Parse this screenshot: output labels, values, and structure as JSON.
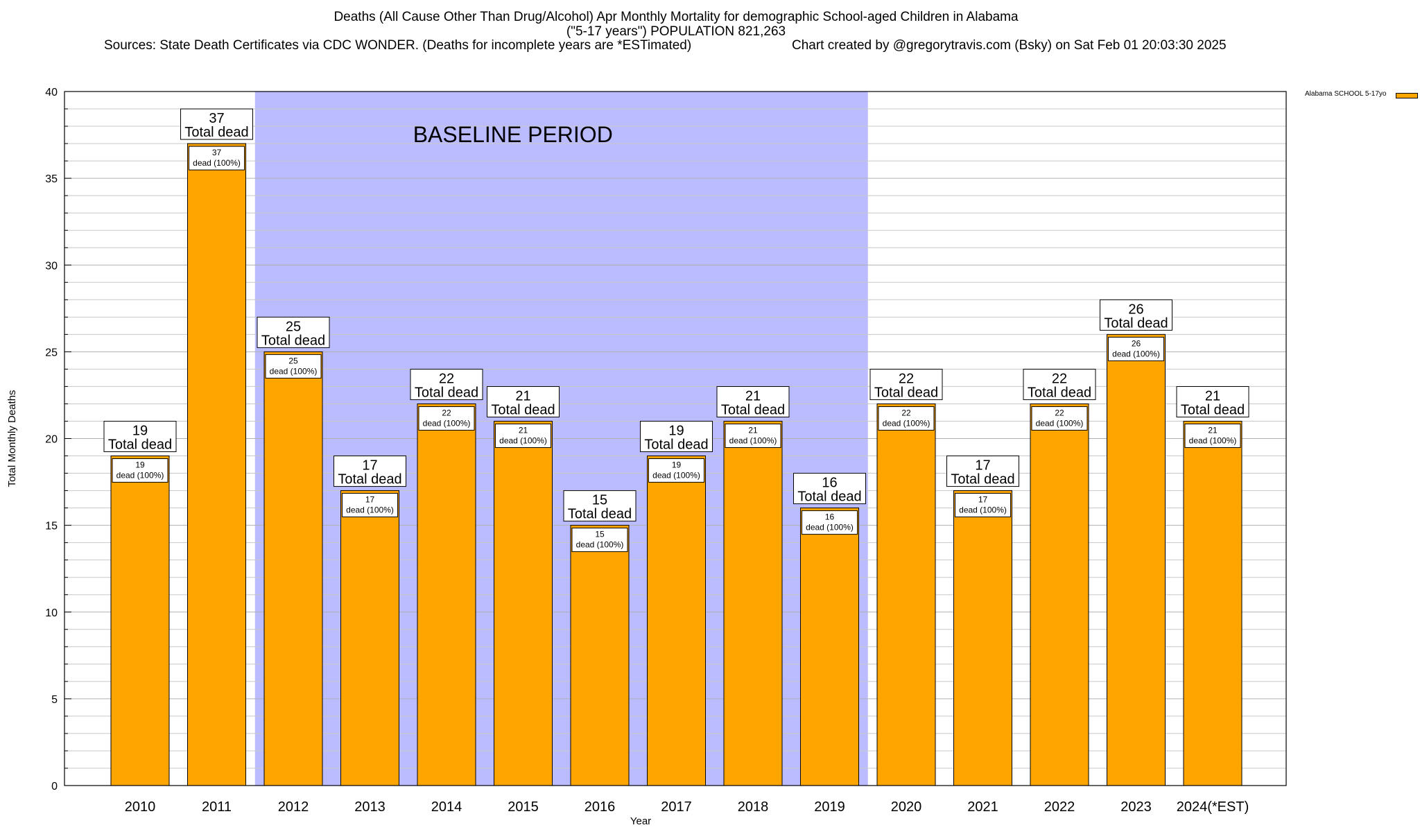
{
  "title": {
    "line1": "Deaths (All Cause Other Than Drug/Alcohol) Apr Monthly Mortality for demographic School-aged Children in Alabama",
    "line2": "(\"5-17 years\") POPULATION 821,263",
    "line3": "Sources: State Death Certificates via CDC WONDER. (Deaths for incomplete years are *ESTimated)",
    "credit": "Chart created by @gregorytravis.com (Bsky) on Sat Feb 01 20:03:30 2025"
  },
  "legend": {
    "label": "Alabama SCHOOL 5-17yo",
    "color": "#ffa500"
  },
  "colors": {
    "bar": "#ffa500",
    "baseline": "#bbbbff",
    "grid": "#c8c8c8"
  },
  "chart_data": {
    "type": "bar",
    "title": "Deaths (All Cause Other Than Drug/Alcohol) Apr Monthly Mortality for demographic School-aged Children in Alabama",
    "xlabel": "Year",
    "ylabel": "Total Monthly Deaths",
    "ylim": [
      0,
      40
    ],
    "yticks": [
      0,
      5,
      10,
      15,
      20,
      25,
      30,
      35,
      40
    ],
    "grid": true,
    "legend_position": "top-right",
    "categories": [
      "2010",
      "2011",
      "2012",
      "2013",
      "2014",
      "2015",
      "2016",
      "2017",
      "2018",
      "2019",
      "2020",
      "2021",
      "2022",
      "2023",
      "2024(*EST)"
    ],
    "series": [
      {
        "name": "Alabama SCHOOL 5-17yo",
        "values": [
          19,
          37,
          25,
          17,
          22,
          21,
          15,
          19,
          21,
          16,
          22,
          17,
          22,
          26,
          21
        ]
      }
    ],
    "total_label": "Total dead",
    "inner_label": "dead (100%)",
    "baseline": {
      "label": "BASELINE PERIOD",
      "from": "2012",
      "to": "2019"
    }
  }
}
